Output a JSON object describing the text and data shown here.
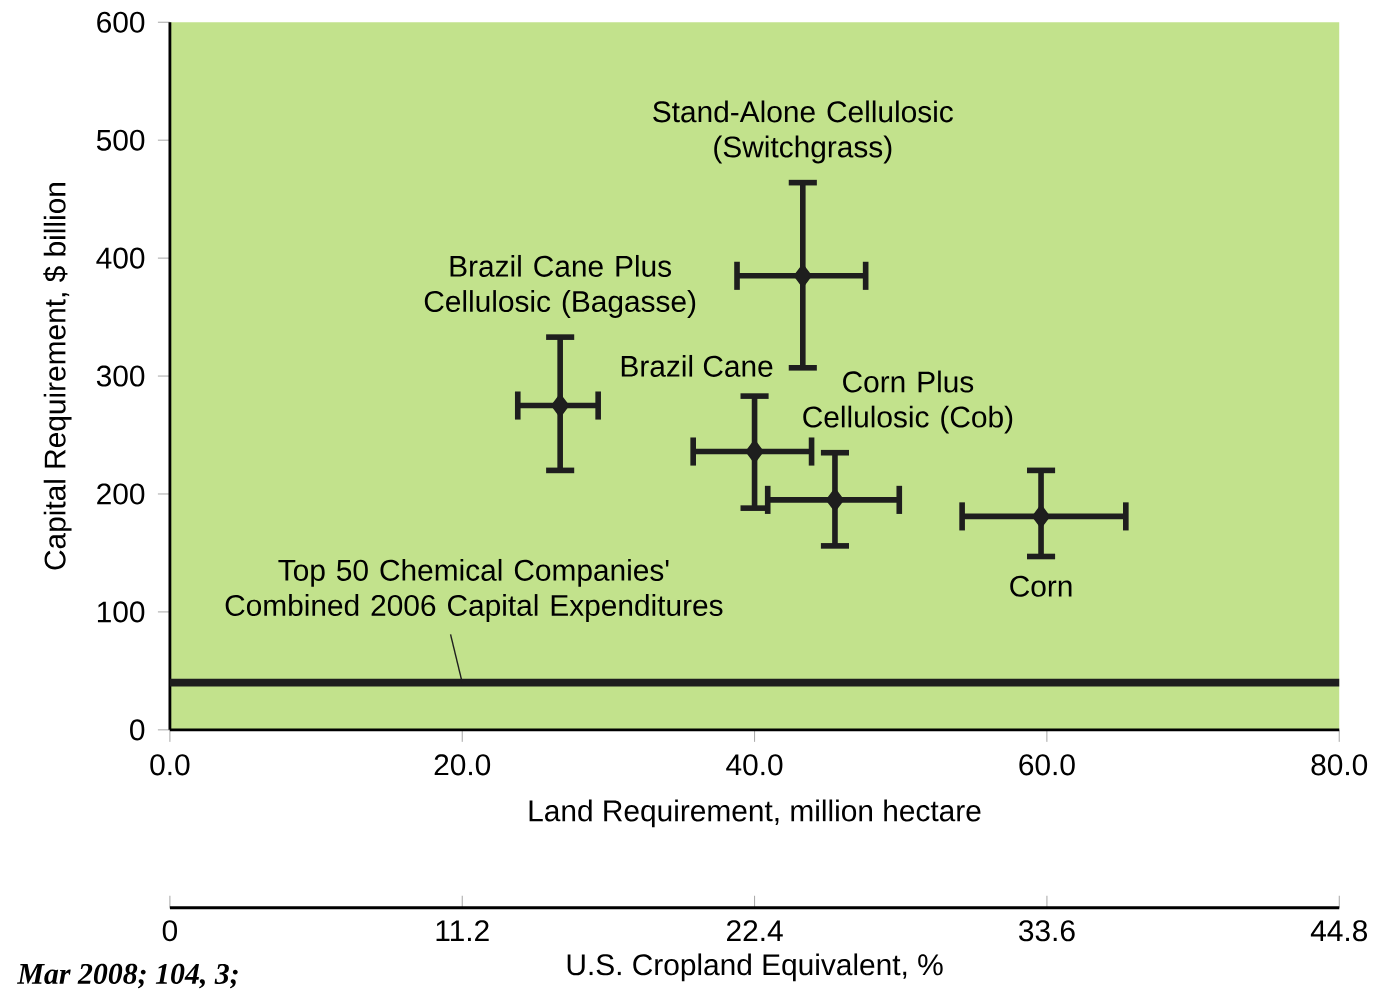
{
  "chart_data": {
    "type": "scatter",
    "xlabel": "Land Requirement, million hectare",
    "ylabel": "Capital Requirement, $ billion",
    "x2label": "U.S. Cropland Equivalent, %",
    "xlim": [
      0,
      80
    ],
    "xticks": [
      {
        "value": 0,
        "label": "0.0"
      },
      {
        "value": 20,
        "label": "20.0"
      },
      {
        "value": 40,
        "label": "40.0"
      },
      {
        "value": 60,
        "label": "60.0"
      },
      {
        "value": 80,
        "label": "80.0"
      }
    ],
    "ylim": [
      0,
      600
    ],
    "yticks": [
      0,
      100,
      200,
      300,
      400,
      500,
      600
    ],
    "x2lim": [
      0,
      44.8
    ],
    "x2ticks": [
      0,
      11.2,
      22.4,
      33.6,
      44.8
    ],
    "x": [
      26.7,
      43.3,
      40.0,
      45.5,
      59.6
    ],
    "values": [
      275,
      385,
      236,
      195,
      181
    ],
    "errors": [
      [
        220,
        333
      ],
      [
        307,
        464
      ],
      [
        188,
        283
      ],
      [
        156,
        235
      ],
      [
        147,
        220
      ]
    ],
    "xerrors": [
      [
        23.8,
        29.3
      ],
      [
        38.8,
        47.6
      ],
      [
        35.8,
        43.9
      ],
      [
        40.9,
        49.9
      ],
      [
        54.2,
        65.4
      ]
    ],
    "color": "#1e1e1e",
    "marker": "diamond",
    "ref_lines": [
      {
        "axis": "y",
        "value": 40,
        "label": "Top 50 Chemical Companies' Combined 2006 Capital Expenditures",
        "color": "#1e1e1e"
      }
    ],
    "annotations": [
      {
        "text": "Brazil Cane Plus Cellulosic (Bagasse)",
        "x": 26.7,
        "y": 275
      },
      {
        "text": "Stand-Alone Cellulosic (Switchgrass)",
        "x": 43.3,
        "y": 464
      },
      {
        "text": "Brazil Cane",
        "x": 40.0,
        "y": 236
      },
      {
        "text": "Corn Plus Cellulosic (Cob)",
        "x": 45.5,
        "y": 195
      },
      {
        "text": "Corn",
        "x": 59.6,
        "y": 181
      },
      "Mar 2008; 104, 3;"
    ]
  }
}
